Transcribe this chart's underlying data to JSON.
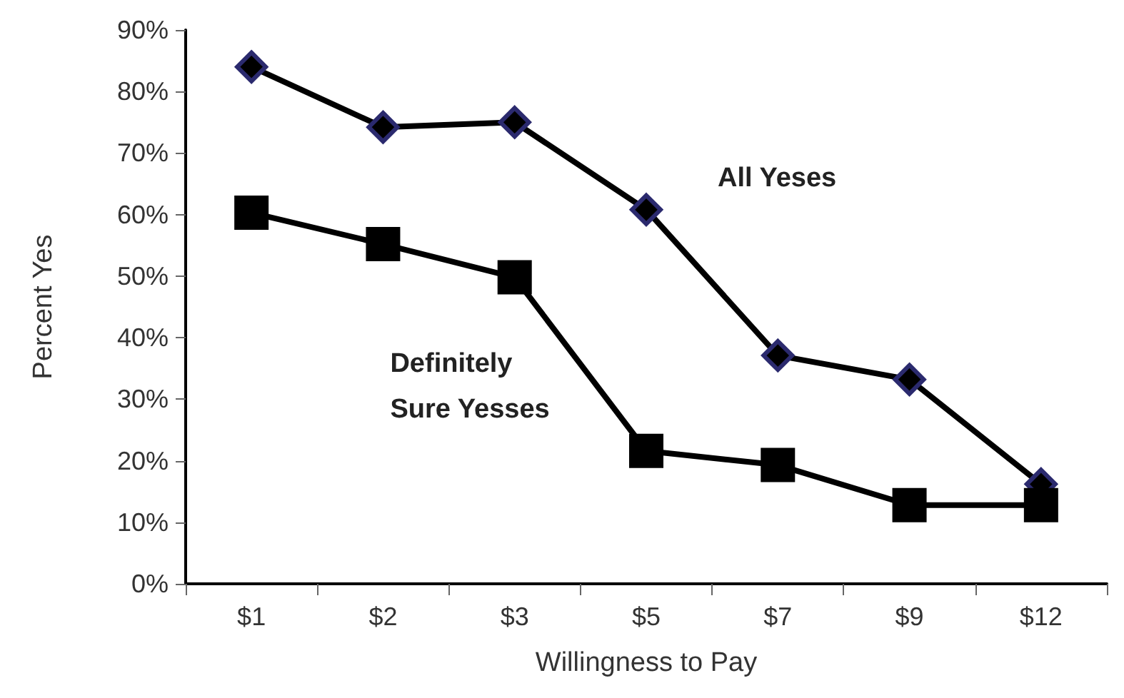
{
  "chart_data": {
    "type": "line",
    "xlabel": "Willingness to Pay",
    "ylabel": "Percent Yes",
    "categories": [
      "$1",
      "$2",
      "$3",
      "$5",
      "$7",
      "$9",
      "$12"
    ],
    "series": [
      {
        "name": "All Yeses",
        "color": "#000000",
        "marker": "diamond",
        "values": [
          84,
          74.2,
          75,
          60.8,
          37.1,
          33.2,
          16.2
        ]
      },
      {
        "name": "Definitely\nSure Yesses",
        "color": "#000000",
        "marker": "square",
        "values": [
          60.3,
          55.2,
          49.8,
          21.6,
          19.3,
          12.8,
          12.8
        ]
      }
    ],
    "ylim": [
      0,
      90
    ],
    "yticks": [
      {
        "value": 0,
        "label": "0%"
      },
      {
        "value": 10,
        "label": "10%"
      },
      {
        "value": 20,
        "label": "20%"
      },
      {
        "value": 30,
        "label": "30%"
      },
      {
        "value": 40,
        "label": "40%"
      },
      {
        "value": 50,
        "label": "50%"
      },
      {
        "value": 60,
        "label": "60%"
      },
      {
        "value": 70,
        "label": "70%"
      },
      {
        "value": 80,
        "label": "80%"
      },
      {
        "value": 90,
        "label": "90%"
      }
    ],
    "grid": false,
    "legend": false,
    "line_style": "solid"
  }
}
